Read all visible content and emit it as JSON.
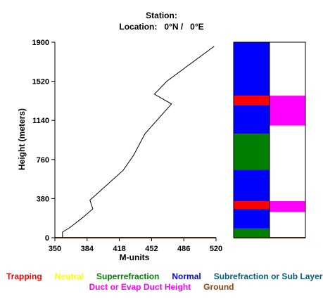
{
  "header": {
    "station": "Station:",
    "location": "Location:   0°N /   0°E"
  },
  "chart_data": {
    "type": "line",
    "xlabel": "M-units",
    "ylabel": "Height (meters)",
    "xlim": [
      350,
      520
    ],
    "ylim": [
      0,
      1900
    ],
    "xticks": [
      "350",
      "384",
      "418",
      "452",
      "486",
      "520"
    ],
    "yticks": [
      "0",
      "380",
      "760",
      "1140",
      "1520",
      "1900"
    ],
    "line_color": "#000000",
    "ground_color": "#8b4513",
    "profile": [
      {
        "x": 358,
        "y": 0
      },
      {
        "x": 358,
        "y": 55
      },
      {
        "x": 366,
        "y": 100
      },
      {
        "x": 380,
        "y": 200
      },
      {
        "x": 390,
        "y": 280
      },
      {
        "x": 387,
        "y": 365
      },
      {
        "x": 422,
        "y": 655
      },
      {
        "x": 433,
        "y": 800
      },
      {
        "x": 445,
        "y": 1010
      },
      {
        "x": 473,
        "y": 1300
      },
      {
        "x": 455,
        "y": 1395
      },
      {
        "x": 468,
        "y": 1520
      },
      {
        "x": 518,
        "y": 1860
      }
    ],
    "layer_bars": [
      {
        "name": "layers",
        "segments": [
          {
            "from": 0,
            "to": 90,
            "type": "superrefraction"
          },
          {
            "from": 90,
            "to": 280,
            "type": "normal"
          },
          {
            "from": 280,
            "to": 355,
            "type": "trapping"
          },
          {
            "from": 355,
            "to": 660,
            "type": "normal"
          },
          {
            "from": 660,
            "to": 1010,
            "type": "superrefraction"
          },
          {
            "from": 1010,
            "to": 1290,
            "type": "normal"
          },
          {
            "from": 1290,
            "to": 1380,
            "type": "trapping"
          },
          {
            "from": 1380,
            "to": 1900,
            "type": "normal"
          }
        ]
      },
      {
        "name": "ducts",
        "segments": [
          {
            "from": 250,
            "to": 355,
            "type": "duct"
          },
          {
            "from": 1090,
            "to": 1380,
            "type": "duct"
          }
        ]
      }
    ]
  },
  "legend": {
    "row1": [
      {
        "key": "trapping",
        "label": "Trapping",
        "color": "#ff0000"
      },
      {
        "key": "neutral",
        "label": "Neutral",
        "color": "#ffff00"
      },
      {
        "key": "superrefraction",
        "label": "Superrefraction",
        "color": "#008000"
      },
      {
        "key": "normal",
        "label": "Normal",
        "color": "#0000ff"
      },
      {
        "key": "subrefraction",
        "label": "Subrefraction or Sub Layer",
        "color": "#006080"
      }
    ],
    "row2": [
      {
        "key": "duct",
        "label": "Duct or Evap Duct Height",
        "color": "#ff00ff"
      },
      {
        "key": "ground",
        "label": "Ground",
        "color": "#8b4513"
      }
    ]
  }
}
